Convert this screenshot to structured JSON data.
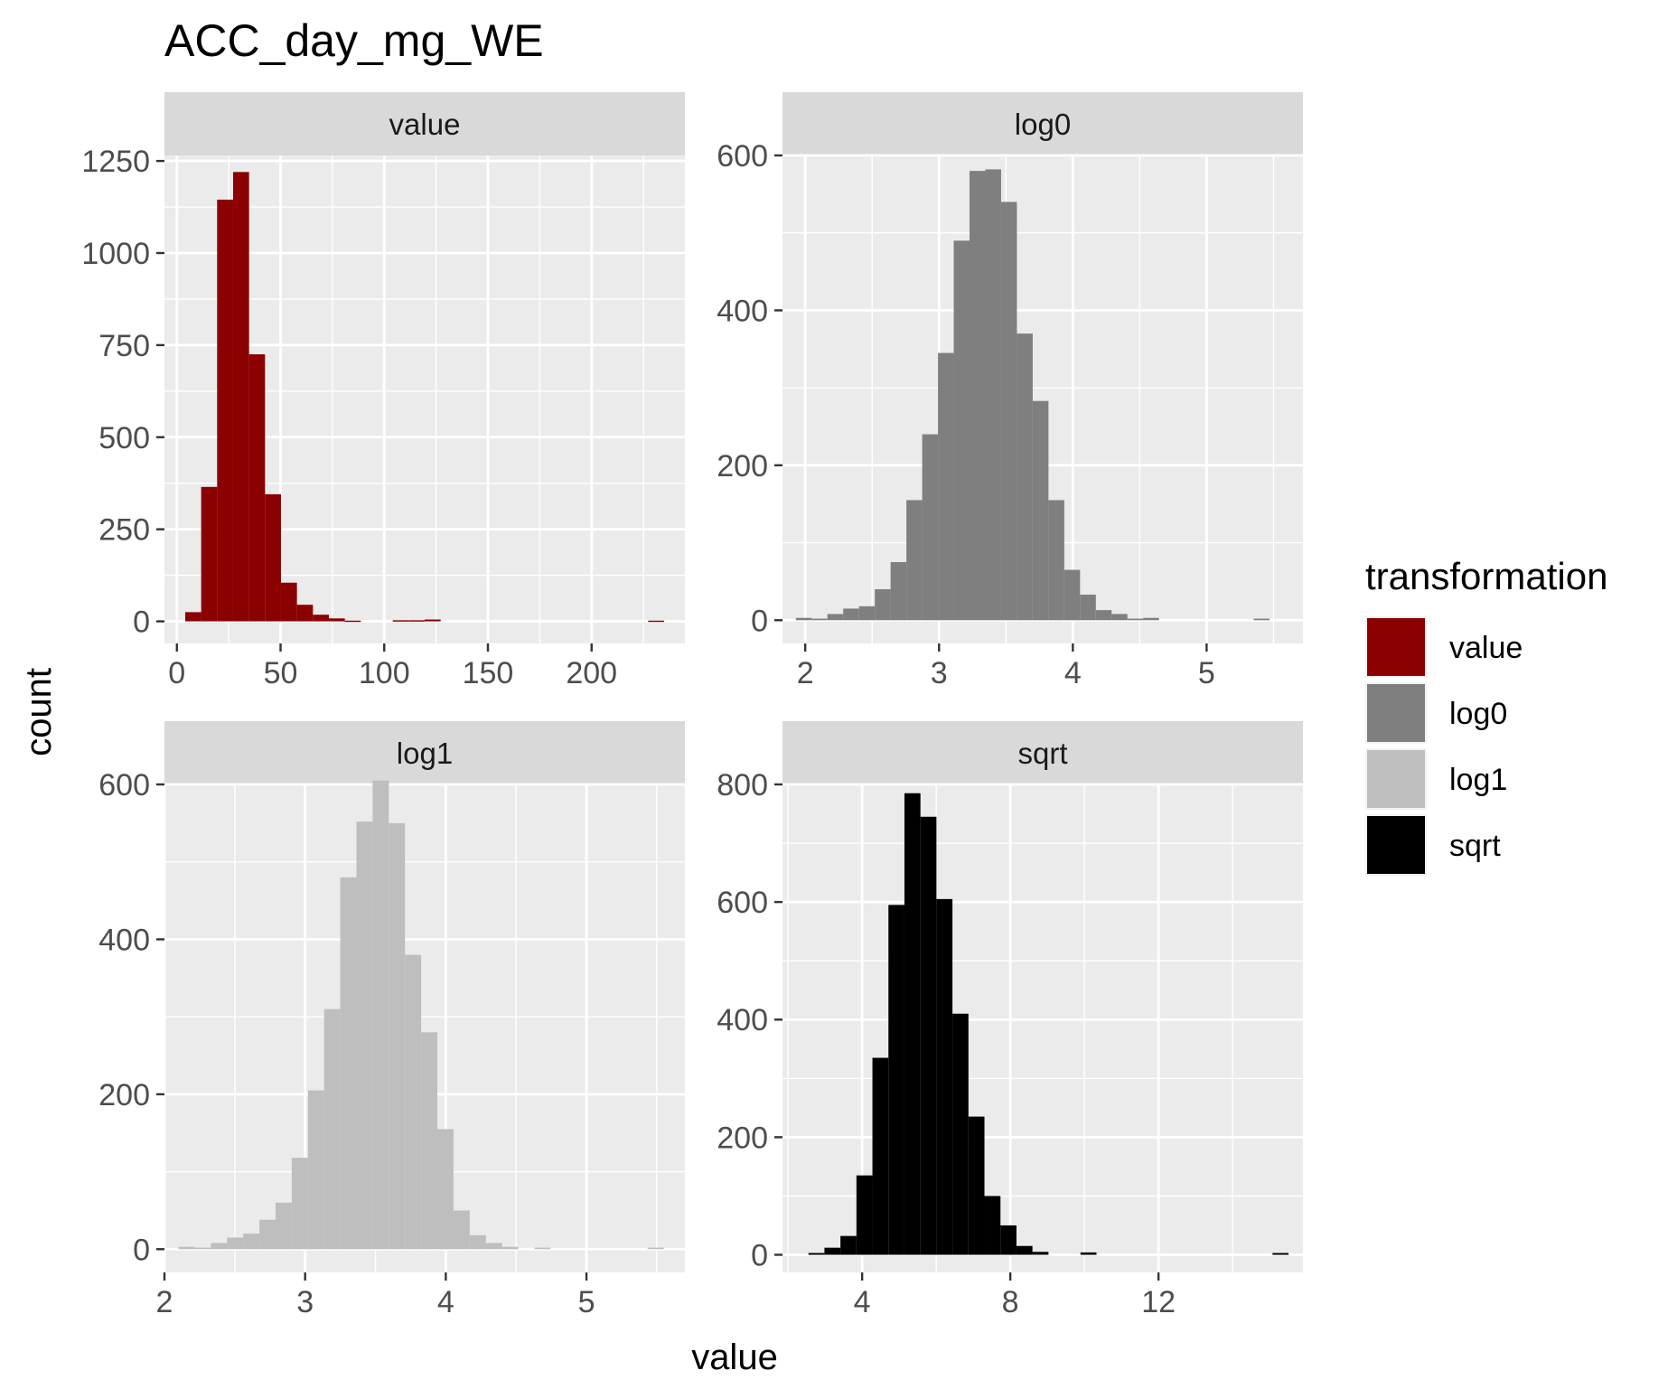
{
  "chart_data": {
    "type": "bar",
    "title": "ACC_day_mg_WE",
    "xlabel": "value",
    "ylabel": "count",
    "grid": true,
    "legend": {
      "title": "transformation",
      "placement": "right",
      "items": [
        {
          "label": "value",
          "color": "#8B0000"
        },
        {
          "label": "log0",
          "color": "#7F7F7F"
        },
        {
          "label": "log1",
          "color": "#BEBEBE"
        },
        {
          "label": "sqrt",
          "color": "#000000"
        }
      ]
    },
    "panels": [
      {
        "name": "value",
        "color": "#8B0000",
        "xlim": [
          -6,
          245
        ],
        "ylim": [
          -60,
          1265
        ],
        "xticks": [
          0,
          50,
          100,
          150,
          200
        ],
        "yticks": [
          0,
          250,
          500,
          750,
          1000,
          1250
        ],
        "bin_start": 4,
        "bin_width": 7.7,
        "counts": [
          25,
          365,
          1145,
          1220,
          725,
          345,
          105,
          45,
          18,
          8,
          2,
          0,
          0,
          3,
          3,
          5,
          0,
          0,
          0,
          0,
          0,
          0,
          0,
          0,
          0,
          0,
          0,
          0,
          0,
          2
        ]
      },
      {
        "name": "log0",
        "color": "#7F7F7F",
        "xlim": [
          1.83,
          5.72
        ],
        "ylim": [
          -30,
          600
        ],
        "xticks": [
          2,
          3,
          4,
          5
        ],
        "yticks": [
          0,
          200,
          400,
          600
        ],
        "bin_start": 1.93,
        "bin_width": 0.118,
        "counts": [
          3,
          2,
          8,
          15,
          18,
          40,
          75,
          155,
          240,
          345,
          490,
          580,
          582,
          540,
          370,
          283,
          155,
          65,
          33,
          13,
          8,
          2,
          3,
          0,
          0,
          0,
          0,
          0,
          0,
          2
        ]
      },
      {
        "name": "log1",
        "color": "#BEBEBE",
        "xlim": [
          2.0,
          5.7
        ],
        "ylim": [
          -30,
          600
        ],
        "xticks": [
          2,
          3,
          4,
          5
        ],
        "yticks": [
          0,
          200,
          400,
          600
        ],
        "bin_start": 2.1,
        "bin_width": 0.115,
        "counts": [
          3,
          2,
          8,
          15,
          20,
          38,
          60,
          118,
          205,
          310,
          480,
          552,
          605,
          550,
          380,
          280,
          155,
          50,
          18,
          8,
          3,
          0,
          2,
          0,
          0,
          0,
          0,
          0,
          0,
          2
        ]
      },
      {
        "name": "sqrt",
        "color": "#000000",
        "xlim": [
          1.85,
          15.9
        ],
        "ylim": [
          -30,
          800
        ],
        "xticks": [
          4,
          8,
          12
        ],
        "yticks": [
          0,
          200,
          400,
          600,
          800
        ],
        "bin_start": 2.55,
        "bin_width": 0.432,
        "counts": [
          3,
          12,
          32,
          135,
          335,
          595,
          785,
          745,
          605,
          410,
          235,
          100,
          50,
          15,
          5,
          0,
          0,
          4,
          0,
          0,
          0,
          0,
          0,
          0,
          0,
          0,
          0,
          0,
          0,
          3
        ]
      }
    ]
  }
}
